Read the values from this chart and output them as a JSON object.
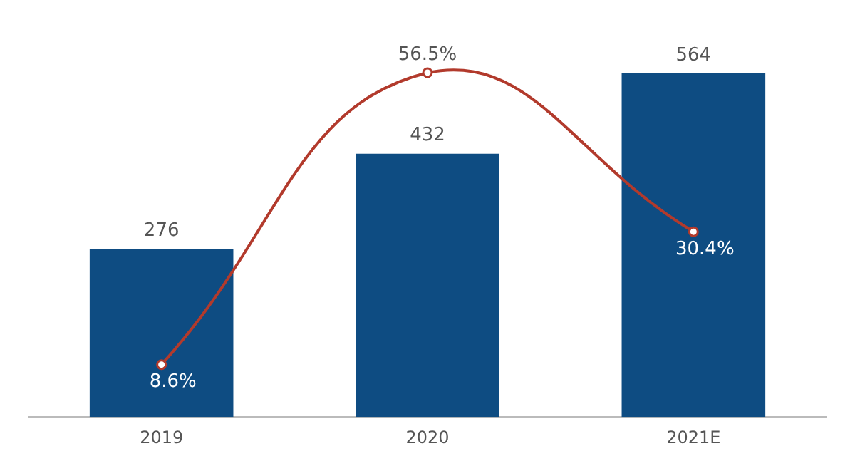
{
  "chart_data": {
    "type": "bar",
    "categories": [
      "2019",
      "2020",
      "2021E"
    ],
    "series": [
      {
        "color": "#0e4c82",
        "values": [
          276,
          432,
          564
        ],
        "value_labels": [
          "276",
          "432",
          "564"
        ]
      },
      {
        "type": "line",
        "axis": "y2",
        "color": "#b23a2c",
        "values": [
          8.6,
          56.5,
          30.4
        ],
        "value_labels": [
          "8.6%",
          "56.5%",
          "30.4%"
        ]
      }
    ],
    "tick_labels": "x",
    "grid": false,
    "legend": false,
    "marker": "circle"
  }
}
